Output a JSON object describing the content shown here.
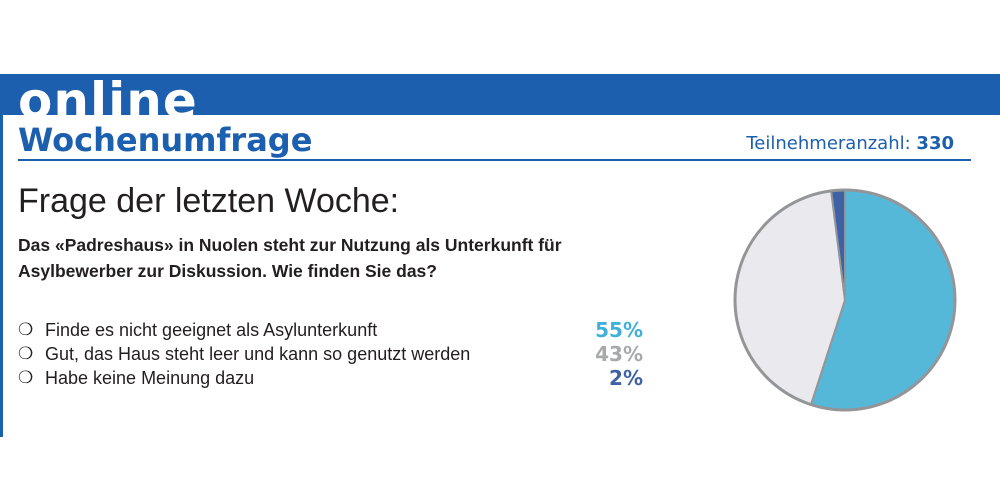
{
  "header": {
    "banner": "online",
    "title": "Wochenumfrage",
    "participants_label": "Teilnehmeranzahl:",
    "participants_count": "330"
  },
  "poll": {
    "heading": "Frage der letzten Woche:",
    "question": "Das «Padreshaus» in Nuolen steht zur Nutzung als Unterkunft für Asylbewerber zur Diskussion. Wie finden Sie das?"
  },
  "chart_data": {
    "type": "pie",
    "categories": [
      "Finde es nicht geeignet als Asylunterkunft",
      "Gut, das Haus steht leer und kann so genutzt werden",
      "Habe keine Meinung dazu"
    ],
    "values": [
      55,
      43,
      2
    ],
    "value_labels": [
      "55%",
      "43%",
      "2%"
    ],
    "colors": [
      "#56b8d8",
      "#e9e9ee",
      "#3f62a6"
    ],
    "label_colors": [
      "#3fb1d8",
      "#a7a9ac",
      "#3f62a6"
    ],
    "outline_color": "#939598"
  }
}
